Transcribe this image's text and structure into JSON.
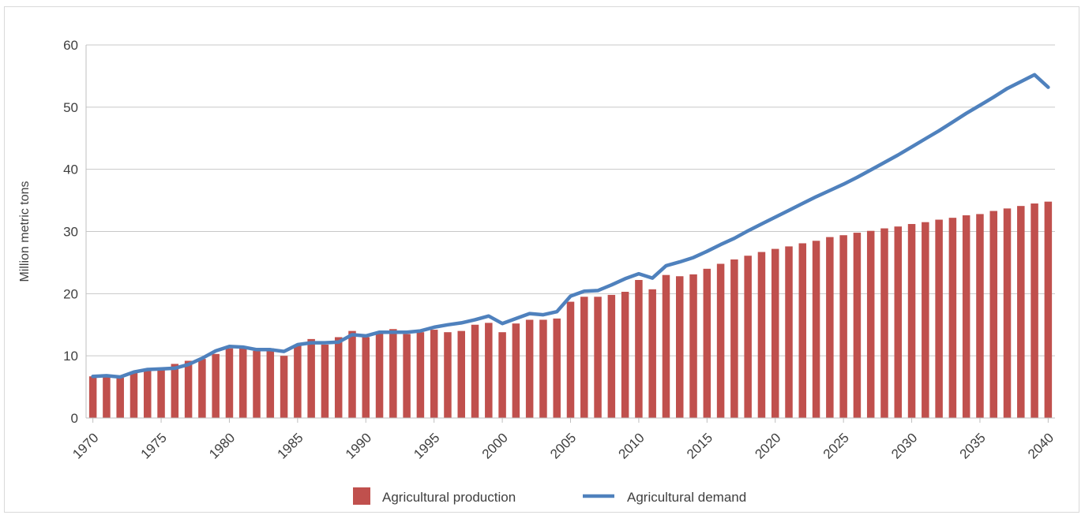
{
  "chart_data": {
    "type": "bar+line",
    "title": "",
    "xlabel": "",
    "ylabel": "Million metric tons",
    "ylim": [
      0,
      60
    ],
    "yticks": [
      0,
      10,
      20,
      30,
      40,
      50,
      60
    ],
    "xtick_labels": [
      "1970",
      "1975",
      "1980",
      "1985",
      "1990",
      "1995",
      "2000",
      "2005",
      "2010",
      "2015",
      "2020",
      "2025",
      "2030",
      "2035",
      "2040"
    ],
    "grid": "horizontal",
    "legend_position": "bottom",
    "x": [
      1970,
      1971,
      1972,
      1973,
      1974,
      1975,
      1976,
      1977,
      1978,
      1979,
      1980,
      1981,
      1982,
      1983,
      1984,
      1985,
      1986,
      1987,
      1988,
      1989,
      1990,
      1991,
      1992,
      1993,
      1994,
      1995,
      1996,
      1997,
      1998,
      1999,
      2000,
      2001,
      2002,
      2003,
      2004,
      2005,
      2006,
      2007,
      2008,
      2009,
      2010,
      2011,
      2012,
      2013,
      2014,
      2015,
      2016,
      2017,
      2018,
      2019,
      2020,
      2021,
      2022,
      2023,
      2024,
      2025,
      2026,
      2027,
      2028,
      2029,
      2030,
      2031,
      2032,
      2033,
      2034,
      2035,
      2036,
      2037,
      2038,
      2039,
      2040
    ],
    "series": [
      {
        "name": "Agricultural production",
        "kind": "bar",
        "color": "#c0504d",
        "values": [
          6.7,
          6.8,
          6.5,
          7.3,
          7.6,
          7.7,
          8.7,
          9.2,
          9.5,
          10.3,
          11.2,
          11.2,
          10.8,
          11.2,
          10.0,
          11.7,
          12.7,
          11.8,
          13.0,
          14.0,
          13.0,
          13.8,
          14.3,
          13.5,
          13.8,
          14.2,
          13.8,
          14.0,
          15.0,
          15.3,
          13.8,
          15.2,
          15.8,
          15.8,
          16.0,
          18.7,
          19.5,
          19.5,
          19.8,
          20.3,
          22.2,
          20.7,
          23.0,
          22.8,
          23.1,
          24.0,
          24.8,
          25.5,
          26.1,
          26.7,
          27.2,
          27.6,
          28.1,
          28.5,
          29.1,
          29.4,
          29.8,
          30.1,
          30.5,
          30.8,
          31.2,
          31.5,
          31.9,
          32.2,
          32.6,
          32.8,
          33.3,
          33.7,
          34.1,
          34.5,
          34.8
        ]
      },
      {
        "name": "Agricultural demand",
        "kind": "line",
        "color": "#4f81bd",
        "values": [
          6.7,
          6.8,
          6.6,
          7.4,
          7.8,
          7.9,
          8.0,
          8.6,
          9.6,
          10.8,
          11.5,
          11.4,
          11.0,
          11.0,
          10.7,
          11.8,
          12.1,
          12.1,
          12.2,
          13.4,
          13.2,
          13.8,
          13.8,
          13.8,
          14.0,
          14.6,
          15.0,
          15.3,
          15.8,
          16.4,
          15.2,
          16.0,
          16.8,
          16.6,
          17.1,
          19.6,
          20.4,
          20.5,
          21.4,
          22.4,
          23.2,
          22.5,
          24.5,
          25.1,
          25.8,
          26.8,
          27.9,
          28.9,
          30.1,
          31.2,
          32.3,
          33.4,
          34.5,
          35.6,
          36.6,
          37.6,
          38.7,
          39.9,
          41.1,
          42.3,
          43.6,
          44.9,
          46.2,
          47.6,
          49.0,
          50.3,
          51.6,
          53.0,
          54.1,
          55.2,
          53.2
        ]
      }
    ]
  }
}
